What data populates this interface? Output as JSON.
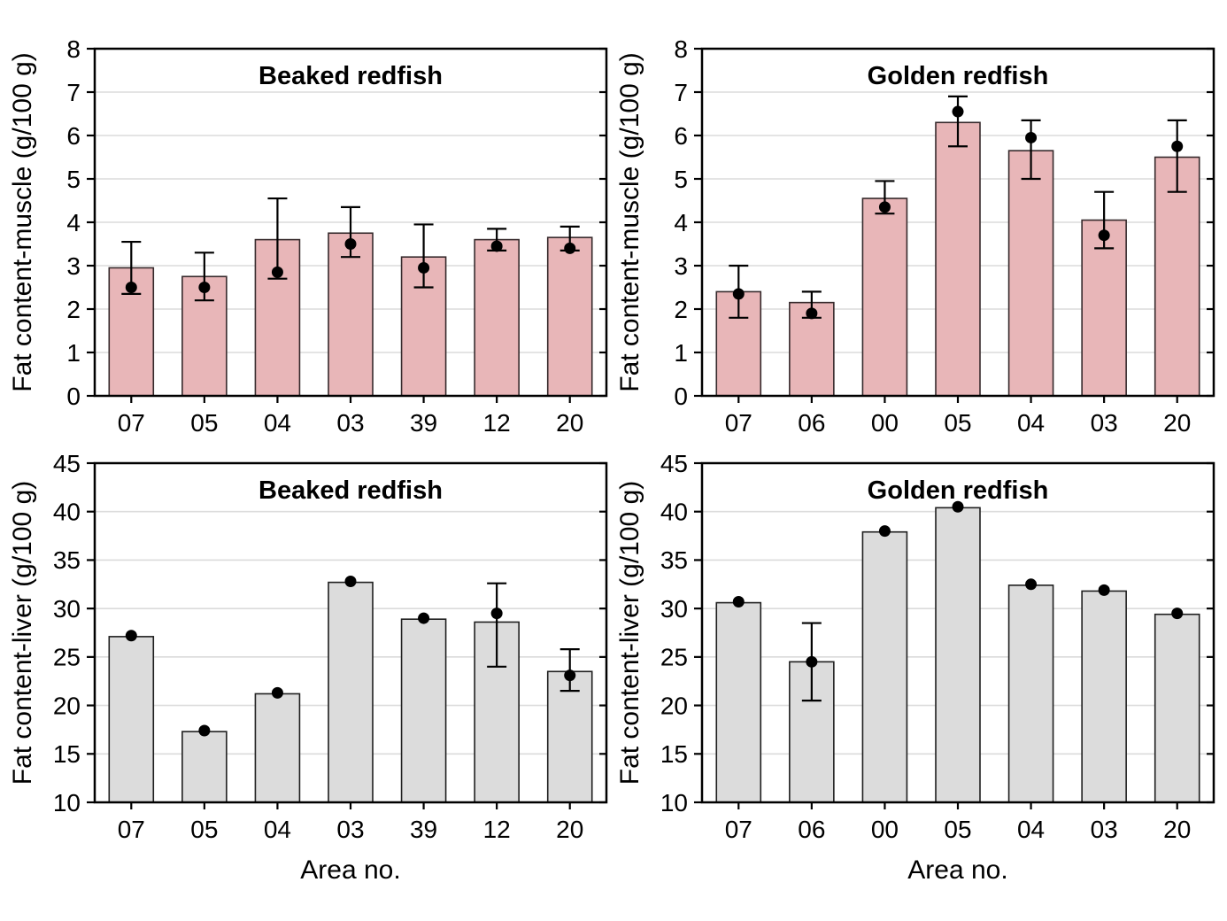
{
  "figure": {
    "background": "#ffffff",
    "description": "Four-panel bar chart figure of fat content in redfish muscle and liver by area"
  },
  "chart_data": [
    {
      "type": "bar",
      "position": "top-left",
      "title": "Beaked redfish",
      "ylabel": "Fat content-muscle (g/100 g)",
      "xlabel": "",
      "ylim": [
        0,
        8
      ],
      "yticks": [
        0,
        1,
        2,
        3,
        4,
        5,
        6,
        7,
        8
      ],
      "grid": true,
      "categories": [
        "07",
        "05",
        "04",
        "03",
        "39",
        "12",
        "20"
      ],
      "series": [
        {
          "name": "bar-fat-content",
          "type": "bar",
          "values": [
            2.95,
            2.75,
            3.6,
            3.75,
            3.2,
            3.6,
            3.65
          ]
        },
        {
          "name": "mean-dot",
          "type": "scatter",
          "values": [
            2.5,
            2.5,
            2.85,
            3.5,
            2.95,
            3.45,
            3.4
          ]
        },
        {
          "name": "error-low",
          "type": "error",
          "values": [
            2.35,
            2.2,
            2.7,
            3.2,
            2.5,
            3.35,
            3.35
          ]
        },
        {
          "name": "error-high",
          "type": "error",
          "values": [
            3.55,
            3.3,
            4.55,
            4.35,
            3.95,
            3.85,
            3.9
          ]
        }
      ],
      "colors": {
        "bar_fill": "#e8b6b8",
        "bar_border": "#362a2c",
        "point": "#000000",
        "error": "#000000",
        "grid": "#dbdbdb",
        "axis": "#000000",
        "text": "#000000"
      }
    },
    {
      "type": "bar",
      "position": "top-right",
      "title": "Golden redfish",
      "ylabel": "Fat content-muscle (g/100 g)",
      "xlabel": "",
      "ylim": [
        0,
        8
      ],
      "yticks": [
        0,
        1,
        2,
        3,
        4,
        5,
        6,
        7,
        8
      ],
      "grid": true,
      "categories": [
        "07",
        "06",
        "00",
        "05",
        "04",
        "03",
        "20"
      ],
      "series": [
        {
          "name": "bar-fat-content",
          "type": "bar",
          "values": [
            2.4,
            2.15,
            4.55,
            6.3,
            5.65,
            4.05,
            5.5
          ]
        },
        {
          "name": "mean-dot",
          "type": "scatter",
          "values": [
            2.35,
            1.9,
            4.35,
            6.55,
            5.95,
            3.7,
            5.75
          ]
        },
        {
          "name": "error-low",
          "type": "error",
          "values": [
            1.8,
            1.8,
            4.2,
            5.75,
            5.0,
            3.4,
            4.7
          ]
        },
        {
          "name": "error-high",
          "type": "error",
          "values": [
            3.0,
            2.4,
            4.95,
            6.9,
            6.35,
            4.7,
            6.35
          ]
        }
      ],
      "colors": {
        "bar_fill": "#e8b6b8",
        "bar_border": "#362a2c",
        "point": "#000000",
        "error": "#000000",
        "grid": "#dbdbdb",
        "axis": "#000000",
        "text": "#000000"
      }
    },
    {
      "type": "bar",
      "position": "bottom-left",
      "title": "Beaked redfish",
      "ylabel": "Fat content-liver (g/100 g)",
      "xlabel": "Area no.",
      "ylim": [
        10,
        45
      ],
      "yticks": [
        10,
        15,
        20,
        25,
        30,
        35,
        40,
        45
      ],
      "grid": true,
      "categories": [
        "07",
        "05",
        "04",
        "03",
        "39",
        "12",
        "20"
      ],
      "series": [
        {
          "name": "bar-fat-content",
          "type": "bar",
          "values": [
            27.1,
            17.3,
            21.2,
            32.7,
            28.9,
            28.6,
            23.5
          ]
        },
        {
          "name": "mean-dot",
          "type": "scatter",
          "values": [
            27.2,
            17.4,
            21.3,
            32.8,
            29.0,
            29.5,
            23.1
          ]
        },
        {
          "name": "error-low",
          "type": "error",
          "values": [
            null,
            null,
            null,
            null,
            null,
            24.0,
            21.5
          ]
        },
        {
          "name": "error-high",
          "type": "error",
          "values": [
            null,
            null,
            null,
            null,
            null,
            32.6,
            25.8
          ]
        }
      ],
      "colors": {
        "bar_fill": "#dcdcdc",
        "bar_border": "#1f1f1f",
        "point": "#000000",
        "error": "#000000",
        "grid": "#dbdbdb",
        "axis": "#000000",
        "text": "#000000"
      }
    },
    {
      "type": "bar",
      "position": "bottom-right",
      "title": "Golden redfish",
      "ylabel": "Fat content-liver (g/100 g)",
      "xlabel": "Area no.",
      "ylim": [
        10,
        45
      ],
      "yticks": [
        10,
        15,
        20,
        25,
        30,
        35,
        40,
        45
      ],
      "grid": true,
      "categories": [
        "07",
        "06",
        "00",
        "05",
        "04",
        "03",
        "20"
      ],
      "series": [
        {
          "name": "bar-fat-content",
          "type": "bar",
          "values": [
            30.6,
            24.5,
            37.9,
            40.4,
            32.4,
            31.8,
            29.4
          ]
        },
        {
          "name": "mean-dot",
          "type": "scatter",
          "values": [
            30.7,
            24.5,
            38.0,
            40.5,
            32.5,
            31.9,
            29.5
          ]
        },
        {
          "name": "error-low",
          "type": "error",
          "values": [
            null,
            20.5,
            null,
            null,
            null,
            null,
            null
          ]
        },
        {
          "name": "error-high",
          "type": "error",
          "values": [
            null,
            28.5,
            null,
            null,
            null,
            null,
            null
          ]
        }
      ],
      "colors": {
        "bar_fill": "#dcdcdc",
        "bar_border": "#1f1f1f",
        "point": "#000000",
        "error": "#000000",
        "grid": "#dbdbdb",
        "axis": "#000000",
        "text": "#000000"
      }
    }
  ]
}
